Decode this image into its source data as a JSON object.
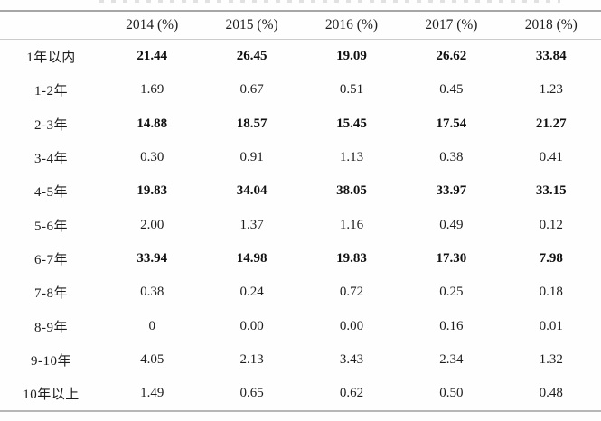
{
  "table": {
    "header": [
      "",
      "2014 (%)",
      "2015 (%)",
      "2016 (%)",
      "2017 (%)",
      "2018 (%)"
    ],
    "rows": [
      {
        "label": "1年以内",
        "bold": true,
        "values": [
          "21.44",
          "26.45",
          "19.09",
          "26.62",
          "33.84"
        ]
      },
      {
        "label": "1-2年",
        "bold": false,
        "values": [
          "1.69",
          "0.67",
          "0.51",
          "0.45",
          "1.23"
        ]
      },
      {
        "label": "2-3年",
        "bold": true,
        "values": [
          "14.88",
          "18.57",
          "15.45",
          "17.54",
          "21.27"
        ]
      },
      {
        "label": "3-4年",
        "bold": false,
        "values": [
          "0.30",
          "0.91",
          "1.13",
          "0.38",
          "0.41"
        ]
      },
      {
        "label": "4-5年",
        "bold": true,
        "values": [
          "19.83",
          "34.04",
          "38.05",
          "33.97",
          "33.15"
        ]
      },
      {
        "label": "5-6年",
        "bold": false,
        "values": [
          "2.00",
          "1.37",
          "1.16",
          "0.49",
          "0.12"
        ]
      },
      {
        "label": "6-7年",
        "bold": true,
        "values": [
          "33.94",
          "14.98",
          "19.83",
          "17.30",
          "7.98"
        ]
      },
      {
        "label": "7-8年",
        "bold": false,
        "values": [
          "0.38",
          "0.24",
          "0.72",
          "0.25",
          "0.18"
        ]
      },
      {
        "label": "8-9年",
        "bold": false,
        "values": [
          "0",
          "0.00",
          "0.00",
          "0.16",
          "0.01"
        ]
      },
      {
        "label": "9-10年",
        "bold": false,
        "values": [
          "4.05",
          "2.13",
          "3.43",
          "2.34",
          "1.32"
        ]
      },
      {
        "label": "10年以上",
        "bold": false,
        "values": [
          "1.49",
          "0.65",
          "0.62",
          "0.50",
          "0.48"
        ]
      }
    ]
  },
  "chart_data": {
    "type": "table",
    "categories": [
      "1年以内",
      "1-2年",
      "2-3年",
      "3-4年",
      "4-5年",
      "5-6年",
      "6-7年",
      "7-8年",
      "8-9年",
      "9-10年",
      "10年以上"
    ],
    "series": [
      {
        "name": "2014 (%)",
        "values": [
          21.44,
          1.69,
          14.88,
          0.3,
          19.83,
          2.0,
          33.94,
          0.38,
          0,
          4.05,
          1.49
        ]
      },
      {
        "name": "2015 (%)",
        "values": [
          26.45,
          0.67,
          18.57,
          0.91,
          34.04,
          1.37,
          14.98,
          0.24,
          0.0,
          2.13,
          0.65
        ]
      },
      {
        "name": "2016 (%)",
        "values": [
          19.09,
          0.51,
          15.45,
          1.13,
          38.05,
          1.16,
          19.83,
          0.72,
          0.0,
          3.43,
          0.62
        ]
      },
      {
        "name": "2017 (%)",
        "values": [
          26.62,
          0.45,
          17.54,
          0.38,
          33.97,
          0.49,
          17.3,
          0.25,
          0.16,
          2.34,
          0.5
        ]
      },
      {
        "name": "2018 (%)",
        "values": [
          33.84,
          1.23,
          21.27,
          0.41,
          33.15,
          0.12,
          7.98,
          0.18,
          0.01,
          1.32,
          0.48
        ]
      }
    ],
    "bold_rows": [
      "1年以内",
      "2-3年",
      "4-5年",
      "6-7年"
    ],
    "title": "",
    "legend_position": "none",
    "grid": false
  },
  "colors": {
    "background": "#fefefe",
    "text": "#1d1d1d",
    "border_top": "#a6a6a6",
    "border_header": "#cccccc",
    "border_bottom": "#b7b7b7"
  }
}
